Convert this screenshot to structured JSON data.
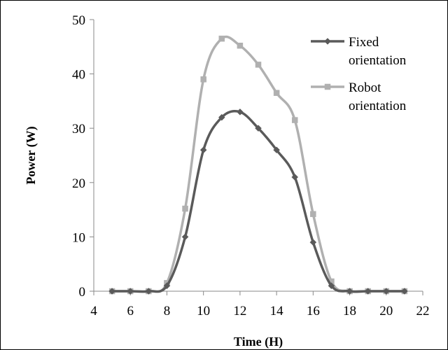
{
  "chart_data": {
    "type": "line",
    "title": "",
    "xlabel": "Time (H)",
    "ylabel": "Power (W)",
    "xlim": [
      4,
      22
    ],
    "ylim": [
      0,
      50
    ],
    "x_ticks": [
      4,
      6,
      8,
      10,
      12,
      14,
      16,
      18,
      20,
      22
    ],
    "y_ticks": [
      0,
      10,
      20,
      30,
      40,
      50
    ],
    "grid": false,
    "legend_position": "top-right",
    "smooth": true,
    "series": [
      {
        "name": "Fixed orientation",
        "legend_lines": [
          "Fixed",
          "orientation"
        ],
        "color": "#5a5a5a",
        "marker": "diamond",
        "x": [
          5,
          6,
          7,
          8,
          9,
          10,
          11,
          12,
          13,
          14,
          15,
          16,
          17,
          18,
          19,
          20,
          21
        ],
        "y": [
          0,
          0,
          0,
          1,
          10,
          26,
          32,
          33,
          30,
          26,
          21,
          9,
          1,
          0,
          0,
          0,
          0
        ]
      },
      {
        "name": "Robot orientation",
        "legend_lines": [
          "Robot",
          "orientation"
        ],
        "color": "#b0b0b0",
        "marker": "square",
        "x": [
          5,
          6,
          7,
          8,
          9,
          10,
          11,
          12,
          13,
          14,
          15,
          16,
          17,
          18,
          19,
          20,
          21
        ],
        "y": [
          0,
          0,
          0,
          1.5,
          15.2,
          39,
          46.5,
          45.2,
          41.7,
          36.5,
          31.5,
          14.2,
          1.8,
          0,
          0,
          0,
          0
        ]
      }
    ]
  }
}
